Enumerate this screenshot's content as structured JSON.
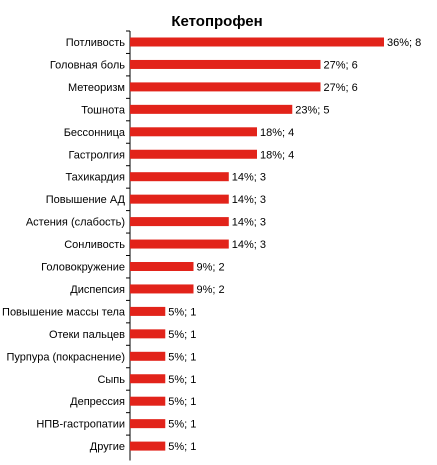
{
  "chart_data": {
    "type": "bar",
    "orientation": "horizontal",
    "title": "Кетопрофен",
    "xlabel": "",
    "ylabel": "",
    "bar_color": "#e2231a",
    "xlim": [
      0,
      36
    ],
    "grid": false,
    "legend": "none",
    "categories": [
      "Потливость",
      "Головная боль",
      "Метеоризм",
      "Тошнота",
      "Бессонница",
      "Гастролгия",
      "Тахикардия",
      "Повышение АД",
      "Астения (слабость)",
      "Сонливость",
      "Головокружение",
      "Диспепсия",
      "Повышение массы тела",
      "Отеки пальцев",
      "Пурпура (покраснение)",
      "Сыпь",
      "Депрессия",
      "НПВ-гастропатии",
      "Другие"
    ],
    "values": [
      36,
      27,
      27,
      23,
      18,
      18,
      14,
      14,
      14,
      14,
      9,
      9,
      5,
      5,
      5,
      5,
      5,
      5,
      5
    ],
    "counts": [
      8,
      6,
      6,
      5,
      4,
      4,
      3,
      3,
      3,
      3,
      2,
      2,
      1,
      1,
      1,
      1,
      1,
      1,
      1
    ],
    "data_labels": [
      "36%; 8",
      "27%; 6",
      "27%; 6",
      "23%; 5",
      "18%; 4",
      "18%; 4",
      "14%; 3",
      "14%; 3",
      "14%; 3",
      "14%; 3",
      "9%; 2",
      "9%; 2",
      "5%; 1",
      "5%; 1",
      "5%; 1",
      "5%; 1",
      "5%; 1",
      "5%; 1",
      "5%; 1"
    ]
  }
}
